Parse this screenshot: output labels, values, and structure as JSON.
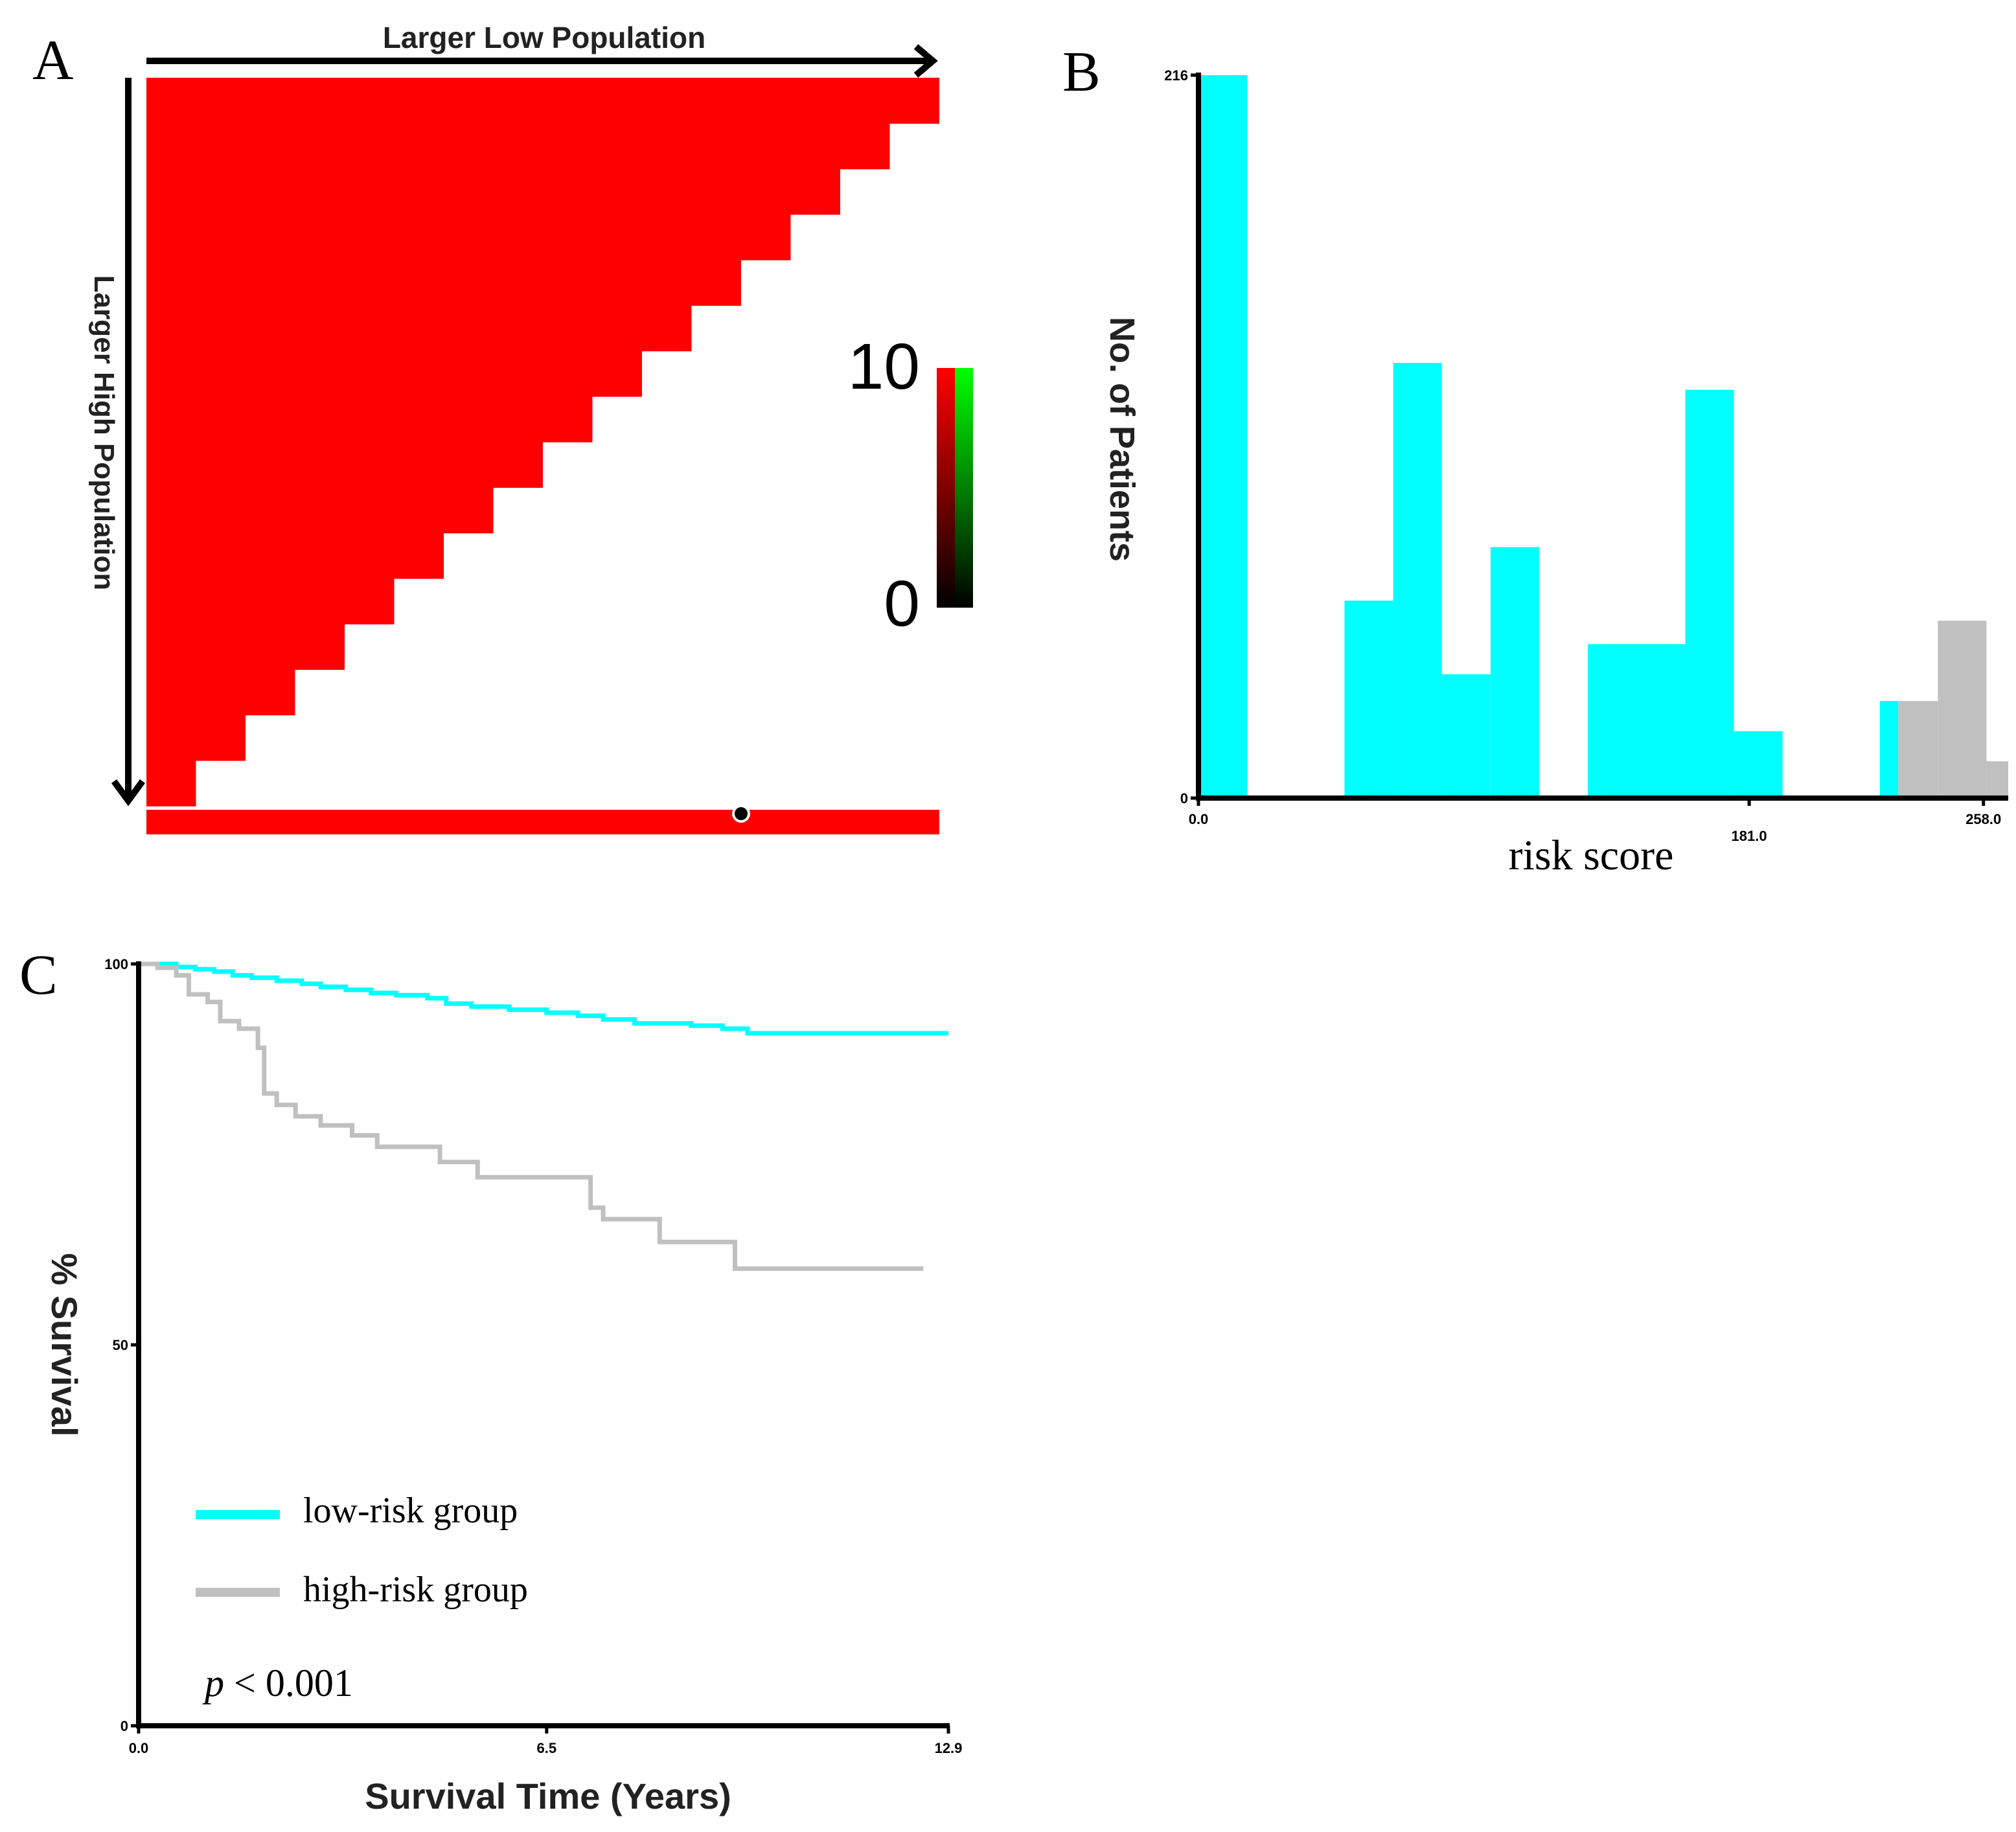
{
  "panels": {
    "a": {
      "letter": "A"
    },
    "b": {
      "letter": "B"
    },
    "c": {
      "letter": "C"
    }
  },
  "colors": {
    "heatmap_red": "#ff0000",
    "low_risk": "#00ffff",
    "high_risk": "#c0c0c0",
    "axis": "#000000",
    "scale_top_left": "#ff0000",
    "scale_top_right": "#00ff00",
    "scale_bottom": "#000000"
  },
  "chart_data": [
    {
      "type": "heatmap",
      "panel": "A",
      "x_arrow_label": "Larger Low Population",
      "y_arrow_label": "Larger High Population",
      "color_scale": {
        "max_label": "10",
        "min_label": "0",
        "colors": [
          "red-green",
          "black"
        ]
      },
      "steps": 16,
      "cell_value": "max (red)",
      "bottom_bar": "red",
      "marker_position_fraction": 0.75
    },
    {
      "type": "bar",
      "panel": "B",
      "xlabel": "risk score",
      "ylabel": "No. of Patients",
      "xlim": [
        0,
        267
      ],
      "ylim": [
        0,
        216
      ],
      "x_ticks": [
        "0.0",
        "181.0",
        "258.0"
      ],
      "y_ticks": [
        "0",
        "216"
      ],
      "threshold": 230,
      "bins": [
        {
          "x0": 0,
          "x1": 16,
          "value": 216,
          "group": "low"
        },
        {
          "x0": 16,
          "x1": 48,
          "value": 0,
          "group": "low"
        },
        {
          "x0": 48,
          "x1": 64,
          "value": 59,
          "group": "low"
        },
        {
          "x0": 64,
          "x1": 80,
          "value": 130,
          "group": "low"
        },
        {
          "x0": 80,
          "x1": 96,
          "value": 37,
          "group": "low"
        },
        {
          "x0": 96,
          "x1": 112,
          "value": 75,
          "group": "low"
        },
        {
          "x0": 112,
          "x1": 128,
          "value": 0,
          "group": "low"
        },
        {
          "x0": 128,
          "x1": 160,
          "value": 46,
          "group": "low"
        },
        {
          "x0": 160,
          "x1": 176,
          "value": 122,
          "group": "low"
        },
        {
          "x0": 176,
          "x1": 192,
          "value": 20,
          "group": "low"
        },
        {
          "x0": 192,
          "x1": 224,
          "value": 0,
          "group": "low"
        },
        {
          "x0": 224,
          "x1": 230,
          "value": 29,
          "group": "low"
        },
        {
          "x0": 230,
          "x1": 243,
          "value": 29,
          "group": "high"
        },
        {
          "x0": 243,
          "x1": 259,
          "value": 53,
          "group": "high"
        },
        {
          "x0": 259,
          "x1": 275,
          "value": 11,
          "group": "high"
        }
      ]
    },
    {
      "type": "line",
      "panel": "C",
      "xlabel": "Survival Time (Years)",
      "ylabel": "% Survival",
      "xlim": [
        0,
        12.9
      ],
      "ylim": [
        0,
        100
      ],
      "x_ticks": [
        "0.0",
        "6.5",
        "12.9"
      ],
      "y_ticks": [
        "0",
        "50",
        "100"
      ],
      "annotation": {
        "italic": "p",
        "text": " < 0.001"
      },
      "series": [
        {
          "name": "low-risk group",
          "group": "low",
          "points": [
            [
              0,
              100
            ],
            [
              0.3,
              100
            ],
            [
              0.6,
              99.6
            ],
            [
              0.9,
              99.3
            ],
            [
              1.2,
              99
            ],
            [
              1.5,
              98.5
            ],
            [
              1.8,
              98.2
            ],
            [
              2.2,
              97.8
            ],
            [
              2.6,
              97.4
            ],
            [
              2.9,
              97
            ],
            [
              3.3,
              96.6
            ],
            [
              3.7,
              96.2
            ],
            [
              4.1,
              95.9
            ],
            [
              4.6,
              95.5
            ],
            [
              4.9,
              94.8
            ],
            [
              5.3,
              94.4
            ],
            [
              5.9,
              94
            ],
            [
              6.5,
              93.6
            ],
            [
              7,
              93.2
            ],
            [
              7.4,
              92.7
            ],
            [
              7.9,
              92.2
            ],
            [
              8.8,
              91.9
            ],
            [
              9.3,
              91.5
            ],
            [
              9.7,
              90.9
            ],
            [
              12.9,
              90.9
            ]
          ]
        },
        {
          "name": "high-risk group",
          "group": "high",
          "points": [
            [
              0,
              100
            ],
            [
              0.3,
              99.5
            ],
            [
              0.6,
              98.5
            ],
            [
              0.8,
              96
            ],
            [
              1.1,
              95
            ],
            [
              1.3,
              92.5
            ],
            [
              1.6,
              91.5
            ],
            [
              1.9,
              89
            ],
            [
              2,
              83
            ],
            [
              2.2,
              81.5
            ],
            [
              2.5,
              80
            ],
            [
              2.9,
              78.8
            ],
            [
              3.4,
              77.5
            ],
            [
              3.8,
              76
            ],
            [
              4.8,
              74
            ],
            [
              5.4,
              72
            ],
            [
              7.2,
              68
            ],
            [
              7.4,
              66.5
            ],
            [
              8.3,
              63.5
            ],
            [
              9.5,
              60
            ],
            [
              12.5,
              60
            ]
          ]
        }
      ]
    }
  ]
}
